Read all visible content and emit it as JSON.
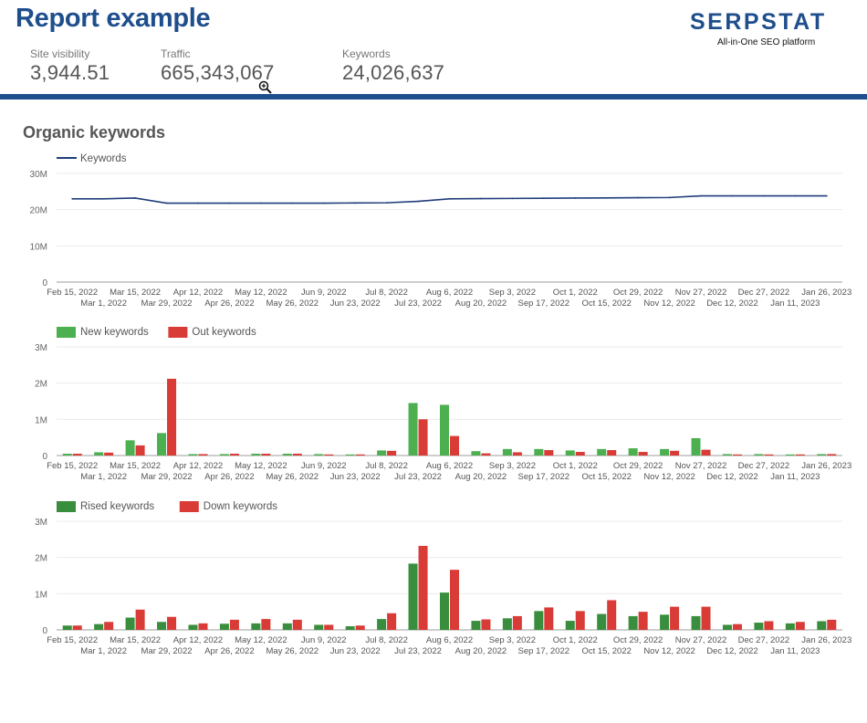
{
  "header": {
    "title": "Report example",
    "metrics": [
      {
        "label": "Site visibility",
        "value": "3,944.51"
      },
      {
        "label": "Traffic",
        "value": "665,343,067"
      },
      {
        "label": "Keywords",
        "value": "24,026,637"
      }
    ],
    "brand": {
      "name": "SERPSTAT",
      "tagline": "All-in-One SEO platform",
      "icon": "serpstat-logo-icon",
      "color": "#1e4e8c"
    }
  },
  "section": {
    "title": "Organic keywords"
  },
  "chart_data": [
    {
      "type": "line",
      "x": [
        "Feb 15, 2022",
        "Mar 1, 2022",
        "Mar 15, 2022",
        "Mar 29, 2022",
        "Apr 12, 2022",
        "Apr 26, 2022",
        "May 12, 2022",
        "May 26, 2022",
        "Jun 9, 2022",
        "Jun 23, 2022",
        "Jul 8, 2022",
        "Jul 23, 2022",
        "Aug 6, 2022",
        "Aug 20, 2022",
        "Sep 3, 2022",
        "Sep 17, 2022",
        "Oct 1, 2022",
        "Oct 15, 2022",
        "Oct 29, 2022",
        "Nov 12, 2022",
        "Nov 27, 2022",
        "Dec 12, 2022",
        "Dec 27, 2022",
        "Jan 11, 2023",
        "Jan 26, 2023"
      ],
      "series": [
        {
          "name": "Keywords",
          "color": "#1f3d7a",
          "values": [
            23000000,
            23000000,
            23200000,
            21800000,
            21800000,
            21800000,
            21800000,
            21800000,
            21800000,
            21850000,
            21900000,
            22300000,
            23000000,
            23050000,
            23100000,
            23150000,
            23200000,
            23250000,
            23300000,
            23350000,
            23800000,
            23800000,
            23800000,
            23800000,
            23800000
          ]
        }
      ],
      "y_ticks": [
        "0",
        "10M",
        "20M",
        "30M"
      ],
      "ylim": [
        0,
        30000000
      ],
      "legend": "top-left",
      "grid": true
    },
    {
      "type": "bar",
      "x": [
        "Feb 15, 2022",
        "Mar 1, 2022",
        "Mar 15, 2022",
        "Mar 29, 2022",
        "Apr 12, 2022",
        "Apr 26, 2022",
        "May 12, 2022",
        "May 26, 2022",
        "Jun 9, 2022",
        "Jun 23, 2022",
        "Jul 8, 2022",
        "Jul 23, 2022",
        "Aug 6, 2022",
        "Aug 20, 2022",
        "Sep 3, 2022",
        "Sep 17, 2022",
        "Oct 1, 2022",
        "Oct 15, 2022",
        "Oct 29, 2022",
        "Nov 12, 2022",
        "Nov 27, 2022",
        "Dec 12, 2022",
        "Dec 27, 2022",
        "Jan 11, 2023",
        "Jan 26, 2023"
      ],
      "series": [
        {
          "name": "New keywords",
          "color": "#4caf50",
          "values": [
            50000,
            90000,
            420000,
            620000,
            40000,
            40000,
            50000,
            50000,
            40000,
            30000,
            140000,
            1450000,
            1400000,
            120000,
            180000,
            180000,
            140000,
            180000,
            200000,
            180000,
            480000,
            40000,
            40000,
            30000,
            40000
          ]
        },
        {
          "name": "Out keywords",
          "color": "#d93b36",
          "values": [
            50000,
            80000,
            280000,
            2120000,
            40000,
            50000,
            50000,
            50000,
            30000,
            30000,
            130000,
            1000000,
            540000,
            60000,
            90000,
            150000,
            100000,
            150000,
            100000,
            130000,
            160000,
            30000,
            30000,
            30000,
            40000
          ]
        }
      ],
      "y_ticks": [
        "0",
        "1M",
        "2M",
        "3M"
      ],
      "ylim": [
        0,
        3000000
      ],
      "legend": "top-left",
      "grid": true
    },
    {
      "type": "bar",
      "x": [
        "Feb 15, 2022",
        "Mar 1, 2022",
        "Mar 15, 2022",
        "Mar 29, 2022",
        "Apr 12, 2022",
        "Apr 26, 2022",
        "May 12, 2022",
        "May 26, 2022",
        "Jun 9, 2022",
        "Jun 23, 2022",
        "Jul 8, 2022",
        "Jul 23, 2022",
        "Aug 6, 2022",
        "Aug 20, 2022",
        "Sep 3, 2022",
        "Sep 17, 2022",
        "Oct 1, 2022",
        "Oct 15, 2022",
        "Oct 29, 2022",
        "Nov 12, 2022",
        "Nov 27, 2022",
        "Dec 12, 2022",
        "Dec 27, 2022",
        "Jan 11, 2023",
        "Jan 26, 2023"
      ],
      "series": [
        {
          "name": "Rised keywords",
          "color": "#388e3c",
          "values": [
            120000,
            160000,
            340000,
            220000,
            140000,
            170000,
            180000,
            180000,
            140000,
            100000,
            300000,
            1830000,
            1030000,
            250000,
            320000,
            520000,
            250000,
            440000,
            380000,
            420000,
            380000,
            140000,
            200000,
            180000,
            240000
          ]
        },
        {
          "name": "Down keywords",
          "color": "#d93b36",
          "values": [
            120000,
            220000,
            560000,
            360000,
            180000,
            280000,
            300000,
            280000,
            140000,
            120000,
            460000,
            2320000,
            1660000,
            290000,
            380000,
            620000,
            520000,
            820000,
            500000,
            640000,
            640000,
            160000,
            240000,
            220000,
            280000
          ]
        }
      ],
      "y_ticks": [
        "0",
        "1M",
        "2M",
        "3M"
      ],
      "ylim": [
        0,
        3000000
      ],
      "legend": "top-left",
      "grid": true
    }
  ]
}
